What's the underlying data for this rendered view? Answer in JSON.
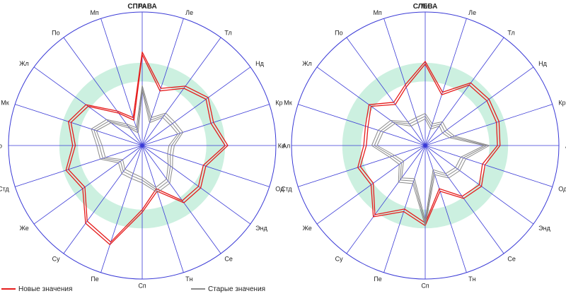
{
  "colors": {
    "axis": "#3a3ad6",
    "band": "#ccf0e0",
    "new_series": "#e51c1c",
    "old_series": "#8a8a8a",
    "text": "#222222"
  },
  "legend": {
    "new_label": "Новые значения",
    "old_label": "Старые значения"
  },
  "chart_data": [
    {
      "type": "radar",
      "title": "СПРАВА",
      "axes": [
        "Ли",
        "Ле",
        "Тл",
        "Нд",
        "Кр",
        "Ал",
        "Од",
        "Энд",
        "Се",
        "Тн",
        "Сп",
        "Пе",
        "Су",
        "Же",
        "Стд",
        "Ко",
        "Мк",
        "Жл",
        "По",
        "Мп"
      ],
      "range": [
        0,
        100
      ],
      "band": [
        48,
        62
      ],
      "series": [
        {
          "name": "Новые значения",
          "kind": "new",
          "traces": [
            [
              70,
              45,
              55,
              61,
              56,
              64,
              50,
              54,
              53,
              36,
              50,
              78,
              72,
              55,
              60,
              52,
              58,
              52,
              32,
              22
            ],
            [
              68,
              43,
              53,
              59,
              54,
              62,
              48,
              52,
              51,
              34,
              48,
              76,
              70,
              53,
              58,
              50,
              56,
              50,
              30,
              20
            ]
          ]
        },
        {
          "name": "Старые значения",
          "kind": "old",
          "traces": [
            [
              45,
              22,
              30,
              30,
              32,
              24,
              24,
              28,
              35,
              37,
              28,
              26,
              26,
              22,
              33,
              34,
              40,
              33,
              20,
              14
            ],
            [
              43,
              20,
              28,
              28,
              30,
              22,
              22,
              26,
              33,
              35,
              26,
              24,
              24,
              20,
              31,
              32,
              38,
              31,
              18,
              12
            ],
            [
              41,
              18,
              26,
              26,
              28,
              20,
              20,
              24,
              31,
              33,
              24,
              22,
              22,
              18,
              29,
              30,
              36,
              29,
              16,
              10
            ]
          ]
        }
      ]
    },
    {
      "type": "radar",
      "title": "СЛЕВА",
      "axes": [
        "Ли",
        "Ле",
        "Тл",
        "Нд",
        "Кр",
        "Ал",
        "Од",
        "Энд",
        "Се",
        "Тн",
        "Сп",
        "Пе",
        "Су",
        "Же",
        "Стд",
        "Ко",
        "Мк",
        "Жл",
        "По",
        "Мп"
      ],
      "range": [
        0,
        100
      ],
      "band": [
        48,
        62
      ],
      "series": [
        {
          "name": "Новые значения",
          "kind": "new",
          "traces": [
            [
              63,
              42,
              58,
              59,
              58,
              56,
              47,
              52,
              49,
              36,
              60,
              52,
              66,
              50,
              53,
              46,
              47,
              52,
              40,
              48
            ],
            [
              61,
              40,
              56,
              57,
              56,
              54,
              45,
              50,
              47,
              34,
              58,
              50,
              64,
              48,
              51,
              44,
              45,
              50,
              38,
              46
            ]
          ]
        },
        {
          "name": "Старые значения",
          "kind": "old",
          "traces": [
            [
              24,
              17,
              22,
              20,
              23,
              48,
              32,
              32,
              30,
              23,
              60,
              30,
              34,
              24,
              28,
              40,
              37,
              32,
              22,
              22
            ],
            [
              22,
              15,
              20,
              18,
              21,
              46,
              30,
              30,
              28,
              21,
              58,
              28,
              32,
              22,
              26,
              38,
              35,
              30,
              20,
              20
            ],
            [
              20,
              13,
              18,
              16,
              19,
              44,
              28,
              28,
              26,
              19,
              56,
              26,
              30,
              20,
              24,
              36,
              33,
              28,
              18,
              18
            ]
          ]
        }
      ]
    }
  ]
}
